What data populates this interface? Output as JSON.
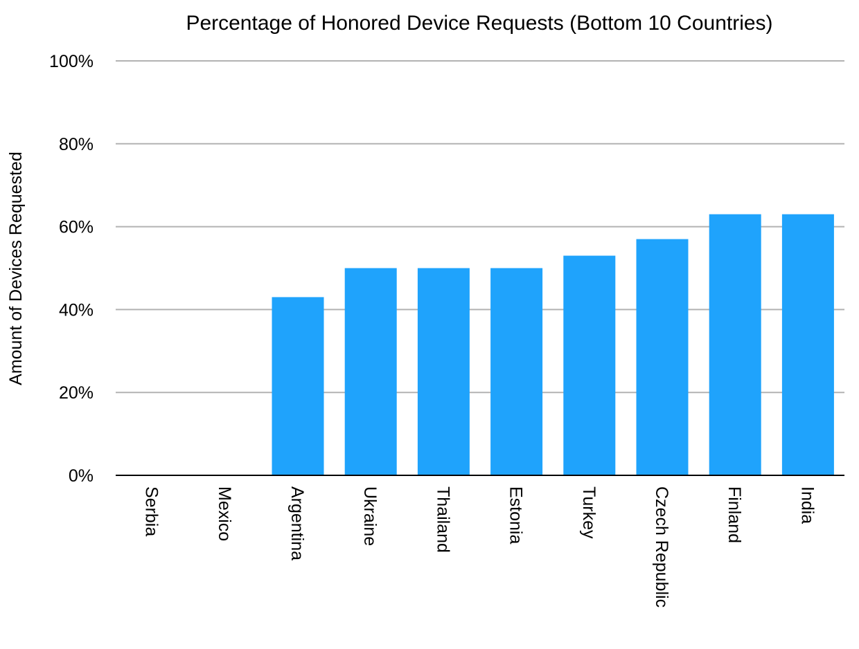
{
  "chart_data": {
    "type": "bar",
    "title": "Percentage of Honored Device Requests (Bottom 10 Countries)",
    "xlabel": "",
    "ylabel": "Amount of Devices Requested",
    "categories": [
      "Serbia",
      "Mexico",
      "Argentina",
      "Ukraine",
      "Thailand",
      "Estonia",
      "Turkey",
      "Czech Republic",
      "Finland",
      "India"
    ],
    "values": [
      0,
      0,
      43,
      50,
      50,
      50,
      53,
      57,
      63,
      63
    ],
    "unit": "%",
    "ylim": [
      0,
      100
    ],
    "yticks": [
      0,
      20,
      40,
      60,
      80,
      100
    ],
    "ytick_labels": [
      "0%",
      "20%",
      "40%",
      "60%",
      "80%",
      "100%"
    ],
    "grid": true,
    "legend": "none",
    "colors": {
      "bar": "#1fa3fc",
      "grid": "#b2b2b2",
      "axis": "#000000"
    }
  }
}
